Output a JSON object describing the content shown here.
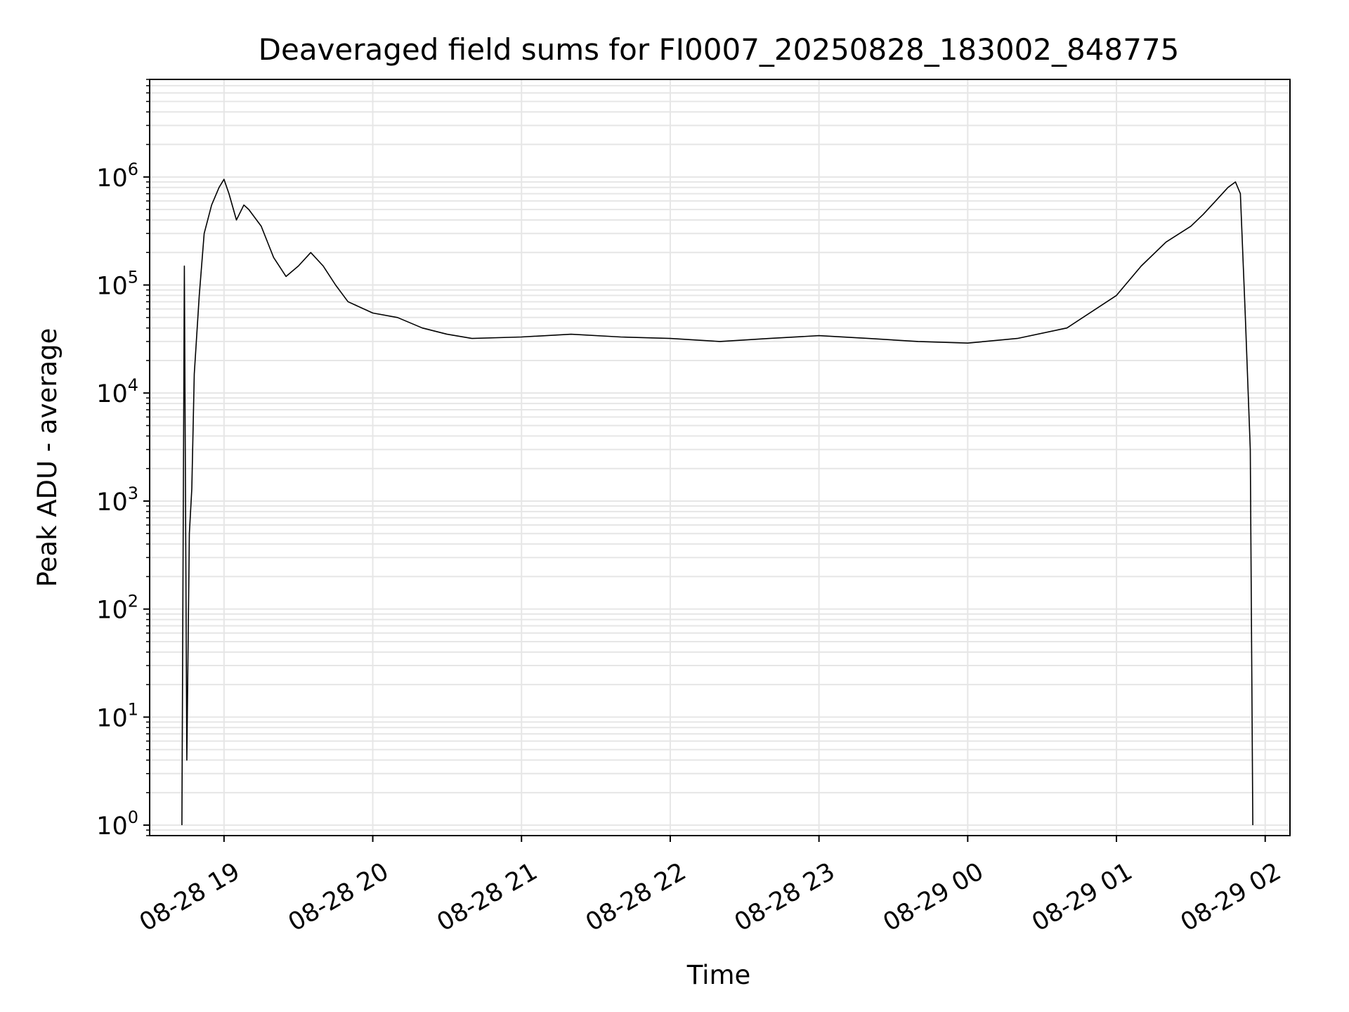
{
  "chart_data": {
    "type": "line",
    "title": "Deaveraged field sums for FI0007_20250828_183002_848775",
    "xlabel": "Time",
    "ylabel": "Peak ADU - average",
    "yscale": "log",
    "grid": true,
    "grid_minor": true,
    "line_color": "#000000",
    "grid_color": "#e6e6e6",
    "xlim": [
      "08-28 18:30",
      "08-29 02:10"
    ],
    "ylim": [
      0.8,
      8000000
    ],
    "x_ticks": [
      "08-28 19",
      "08-28 20",
      "08-28 21",
      "08-28 22",
      "08-28 23",
      "08-29 00",
      "08-29 01",
      "08-29 02"
    ],
    "y_ticks": [
      {
        "value": 1,
        "base": "10",
        "exp": "0"
      },
      {
        "value": 10,
        "base": "10",
        "exp": "1"
      },
      {
        "value": 100,
        "base": "10",
        "exp": "2"
      },
      {
        "value": 1000,
        "base": "10",
        "exp": "3"
      },
      {
        "value": 10000,
        "base": "10",
        "exp": "4"
      },
      {
        "value": 100000,
        "base": "10",
        "exp": "5"
      },
      {
        "value": 1000000,
        "base": "10",
        "exp": "6"
      }
    ],
    "series": [
      {
        "x": [
          "08-28 18:43",
          "08-28 18:44",
          "08-28 18:45",
          "08-28 18:46",
          "08-28 18:47",
          "08-28 18:48",
          "08-28 18:50",
          "08-28 18:52",
          "08-28 18:55",
          "08-28 18:58",
          "08-28 19:00",
          "08-28 19:02",
          "08-28 19:05",
          "08-28 19:08",
          "08-28 19:10",
          "08-28 19:15",
          "08-28 19:20",
          "08-28 19:25",
          "08-28 19:30",
          "08-28 19:35",
          "08-28 19:40",
          "08-28 19:45",
          "08-28 19:50",
          "08-28 20:00",
          "08-28 20:10",
          "08-28 20:20",
          "08-28 20:30",
          "08-28 20:40",
          "08-28 21:00",
          "08-28 21:20",
          "08-28 21:40",
          "08-28 22:00",
          "08-28 22:20",
          "08-28 22:40",
          "08-28 23:00",
          "08-28 23:20",
          "08-28 23:40",
          "08-29 00:00",
          "08-29 00:20",
          "08-29 00:40",
          "08-29 01:00",
          "08-29 01:10",
          "08-29 01:20",
          "08-29 01:30",
          "08-29 01:35",
          "08-29 01:40",
          "08-29 01:45",
          "08-29 01:48",
          "08-29 01:50",
          "08-29 01:52",
          "08-29 01:54",
          "08-29 01:55"
        ],
        "y": [
          1,
          150000,
          4,
          500,
          1300,
          15000,
          80000,
          300000,
          550000,
          800000,
          950000,
          700000,
          400000,
          550000,
          500000,
          350000,
          180000,
          120000,
          150000,
          200000,
          150000,
          100000,
          70000,
          55000,
          50000,
          40000,
          35000,
          32000,
          33000,
          35000,
          33000,
          32000,
          30000,
          32000,
          34000,
          32000,
          30000,
          29000,
          32000,
          40000,
          80000,
          150000,
          250000,
          350000,
          450000,
          600000,
          800000,
          900000,
          700000,
          50000,
          3000,
          1
        ]
      }
    ]
  }
}
